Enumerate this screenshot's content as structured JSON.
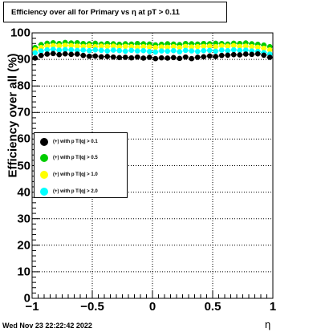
{
  "title": "Efficiency over all for Primary vs   η at pT > 0.11",
  "timestamp": "Wed Nov 23 22:22:42 2022",
  "chart_data": {
    "type": "scatter",
    "xlabel": "η",
    "ylabel": "Efficiency over all (%)",
    "xlim": [
      -1,
      1
    ],
    "ylim": [
      0,
      100
    ],
    "x_ticks": [
      "−1",
      "−0.5",
      "0",
      "0.5",
      "1"
    ],
    "y_ticks": [
      "0",
      "10",
      "20",
      "30",
      "40",
      "50",
      "60",
      "70",
      "80",
      "90",
      "100"
    ],
    "grid": true,
    "legend_position": "middle-left",
    "x": [
      -0.975,
      -0.925,
      -0.875,
      -0.825,
      -0.775,
      -0.725,
      -0.675,
      -0.625,
      -0.575,
      -0.525,
      -0.475,
      -0.425,
      -0.375,
      -0.325,
      -0.275,
      -0.225,
      -0.175,
      -0.125,
      -0.075,
      -0.025,
      0.025,
      0.075,
      0.125,
      0.175,
      0.225,
      0.275,
      0.325,
      0.375,
      0.425,
      0.475,
      0.525,
      0.575,
      0.625,
      0.675,
      0.725,
      0.775,
      0.825,
      0.875,
      0.925,
      0.975
    ],
    "series": [
      {
        "name": "(+) with p T/|q| > 0.1",
        "color": "#000000",
        "values": [
          90.5,
          91.5,
          92.0,
          92.2,
          91.8,
          92.1,
          91.9,
          92.0,
          91.5,
          91.2,
          91.3,
          91.0,
          91.1,
          90.9,
          90.7,
          90.8,
          90.6,
          90.9,
          90.5,
          90.8,
          90.3,
          90.6,
          90.5,
          90.7,
          90.4,
          90.9,
          90.3,
          90.8,
          91.0,
          91.3,
          91.1,
          91.5,
          91.6,
          91.8,
          91.7,
          92.0,
          91.9,
          92.1,
          91.6,
          90.8
        ]
      },
      {
        "name": "(+) with p T/|q| > 0.5",
        "color": "#00cc00",
        "values": [
          94.5,
          95.6,
          96.1,
          96.3,
          96.0,
          96.4,
          96.2,
          96.3,
          96.0,
          95.9,
          96.1,
          95.8,
          96.0,
          95.9,
          95.7,
          95.9,
          95.8,
          96.0,
          95.9,
          95.8,
          95.5,
          95.7,
          95.9,
          95.8,
          95.6,
          96.0,
          95.9,
          95.8,
          96.0,
          95.9,
          96.1,
          96.0,
          95.8,
          96.1,
          96.0,
          96.2,
          95.9,
          95.7,
          95.4,
          94.8
        ]
      },
      {
        "name": "(+) with p T/|q| > 1.0",
        "color": "#ffff00",
        "values": [
          93.6,
          94.5,
          95.0,
          95.2,
          95.1,
          95.3,
          95.2,
          95.0,
          94.9,
          95.1,
          94.8,
          95.0,
          94.9,
          95.0,
          94.7,
          94.9,
          94.8,
          94.6,
          94.8,
          94.7,
          94.5,
          94.7,
          94.6,
          94.8,
          94.5,
          94.9,
          94.7,
          94.8,
          94.9,
          95.0,
          94.8,
          95.1,
          95.0,
          95.2,
          94.9,
          95.0,
          94.8,
          94.6,
          94.2,
          93.6
        ]
      },
      {
        "name": "(+) with p T/|q| > 2.0",
        "color": "#00ffff",
        "values": [
          92.5,
          93.2,
          93.6,
          93.8,
          93.5,
          93.7,
          93.6,
          93.4,
          93.5,
          93.3,
          93.6,
          93.4,
          93.2,
          93.5,
          93.3,
          93.1,
          93.4,
          93.2,
          93.3,
          93.0,
          92.8,
          93.2,
          93.1,
          93.3,
          92.9,
          93.4,
          93.2,
          93.0,
          93.3,
          93.4,
          93.1,
          93.5,
          93.3,
          93.6,
          93.4,
          93.5,
          93.2,
          93.0,
          92.6,
          92.0
        ]
      }
    ]
  }
}
